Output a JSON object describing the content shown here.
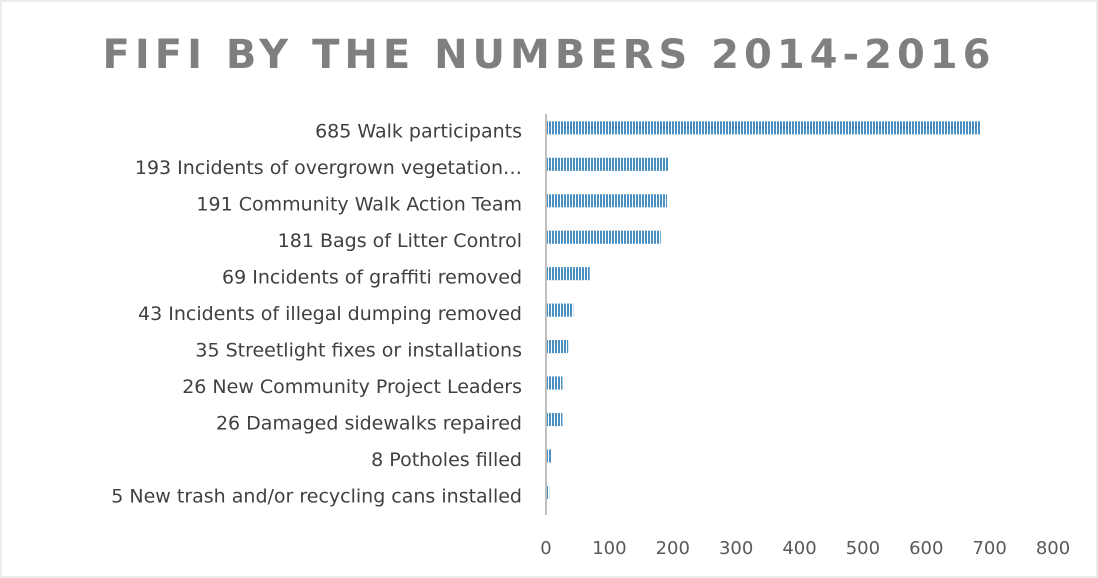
{
  "chart_data": {
    "type": "bar",
    "orientation": "horizontal",
    "title": "FIFI BY THE NUMBERS 2014-2016",
    "categories": [
      "685 Walk participants",
      "193 Incidents of overgrown vegetation…",
      "191 Community Walk Action Team",
      "181 Bags of Litter Control",
      "69 Incidents of graffiti removed",
      "43 Incidents of illegal dumping removed",
      "35 Streetlight fixes or installations",
      "26 New Community Project Leaders",
      "26 Damaged sidewalks repaired",
      "8 Potholes filled ",
      "5 New trash and/or recycling cans installed"
    ],
    "values": [
      685,
      193,
      191,
      181,
      69,
      43,
      35,
      26,
      26,
      8,
      5
    ],
    "color": "#4a8fc2",
    "xlim": [
      0,
      800
    ],
    "xticks": [
      0,
      100,
      200,
      300,
      400,
      500,
      600,
      700,
      800
    ],
    "grid": false
  }
}
